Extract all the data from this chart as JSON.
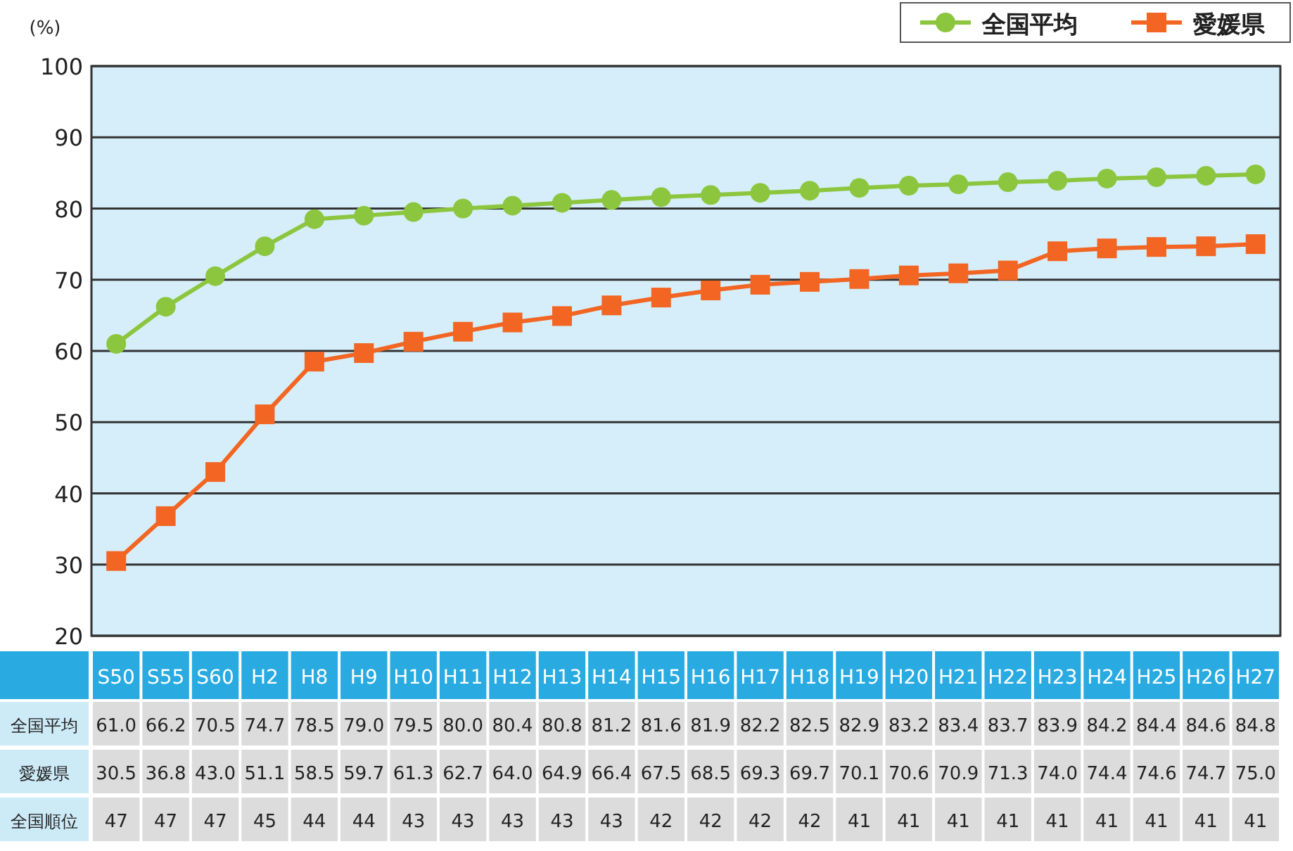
{
  "chart_data": {
    "type": "line",
    "ylabel": "(%)",
    "categories": [
      "S50",
      "S55",
      "S60",
      "H2",
      "H8",
      "H9",
      "H10",
      "H11",
      "H12",
      "H13",
      "H14",
      "H15",
      "H16",
      "H17",
      "H18",
      "H19",
      "H20",
      "H21",
      "H22",
      "H23",
      "H24",
      "H25",
      "H26",
      "H27"
    ],
    "series": [
      {
        "name": "全国平均",
        "color": "#8cc63f",
        "marker": "circle",
        "values": [
          61.0,
          66.2,
          70.5,
          74.7,
          78.5,
          79.0,
          79.5,
          80.0,
          80.4,
          80.8,
          81.2,
          81.6,
          81.9,
          82.2,
          82.5,
          82.9,
          83.2,
          83.4,
          83.7,
          83.9,
          84.2,
          84.4,
          84.6,
          84.8
        ],
        "value_labels": [
          "61.0",
          "66.2",
          "70.5",
          "74.7",
          "78.5",
          "79.0",
          "79.5",
          "80.0",
          "80.4",
          "80.8",
          "81.2",
          "81.6",
          "81.9",
          "82.2",
          "82.5",
          "82.9",
          "83.2",
          "83.4",
          "83.7",
          "83.9",
          "84.2",
          "84.4",
          "84.6",
          "84.8"
        ]
      },
      {
        "name": "愛媛県",
        "color": "#f26522",
        "marker": "square",
        "values": [
          30.5,
          36.8,
          43.0,
          51.1,
          58.5,
          59.7,
          61.3,
          62.7,
          64.0,
          64.9,
          66.4,
          67.5,
          68.5,
          69.3,
          69.7,
          70.1,
          70.6,
          70.9,
          71.3,
          74.0,
          74.4,
          74.6,
          74.7,
          75.0
        ],
        "value_labels": [
          "30.5",
          "36.8",
          "43.0",
          "51.1",
          "58.5",
          "59.7",
          "61.3",
          "62.7",
          "64.0",
          "64.9",
          "66.4",
          "67.5",
          "68.5",
          "69.3",
          "69.7",
          "70.1",
          "70.6",
          "70.9",
          "71.3",
          "74.0",
          "74.4",
          "74.6",
          "74.7",
          "75.0"
        ]
      }
    ],
    "ylim": [
      20,
      100
    ],
    "yticks": [
      20,
      30,
      40,
      50,
      60,
      70,
      80,
      90,
      100
    ],
    "grid": "y",
    "legend": "top right",
    "annotations": [
      "全国順位",
      "47",
      "47",
      "47",
      "45",
      "44",
      "44",
      "43",
      "43",
      "43",
      "43",
      "43",
      "42",
      "42",
      "42",
      "42",
      "41",
      "41",
      "41",
      "41",
      "41",
      "41",
      "41",
      "41",
      "41"
    ]
  }
}
